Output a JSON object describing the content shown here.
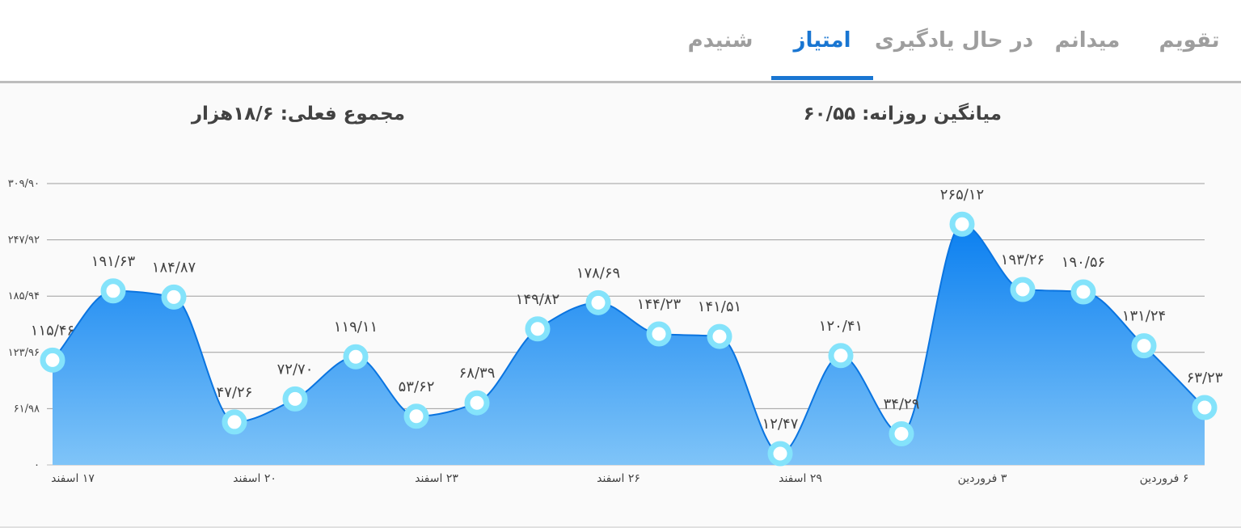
{
  "tabs": [
    {
      "label": "تقویم",
      "active": false
    },
    {
      "label": "میدانم",
      "active": false
    },
    {
      "label": "در حال یادگیری",
      "active": false
    },
    {
      "label": "امتیاز",
      "active": true
    },
    {
      "label": "شنیدم",
      "active": false
    }
  ],
  "stats": {
    "daily_average": "میانگین روزانه: ۶۰/۵۵",
    "current_total": "مجموع فعلی: ۱۸/۶هزار"
  },
  "colors": {
    "accent": "#1976d2",
    "area_top": "#0a7ff0",
    "area_bottom": "#7fc4f8",
    "marker": "#84e3fb"
  },
  "chart_data": {
    "type": "area",
    "y_ticks": [
      "۰",
      "۶۱/۹۸",
      "۱۲۳/۹۶",
      "۱۸۵/۹۴",
      "۲۴۷/۹۲",
      "۳۰۹/۹۰"
    ],
    "ylim": [
      0,
      309.9
    ],
    "x_tick_labels": [
      {
        "index": 0,
        "label": "۱۷ اسفند"
      },
      {
        "index": 3,
        "label": "۲۰ اسفند"
      },
      {
        "index": 6,
        "label": "۲۳ اسفند"
      },
      {
        "index": 9,
        "label": "۲۶ اسفند"
      },
      {
        "index": 12,
        "label": "۲۹ اسفند"
      },
      {
        "index": 15,
        "label": "۳ فروردین"
      },
      {
        "index": 18,
        "label": "۶ فروردین"
      }
    ],
    "values": [
      115.46,
      191.63,
      184.87,
      47.26,
      72.7,
      119.11,
      53.62,
      68.39,
      149.82,
      178.69,
      144.23,
      141.51,
      12.47,
      120.41,
      34.29,
      265.12,
      193.26,
      190.56,
      131.24,
      63.23
    ],
    "labels": [
      "۱۱۵/۴۶",
      "۱۹۱/۶۳",
      "۱۸۴/۸۷",
      "۴۷/۲۶",
      "۷۲/۷۰",
      "۱۱۹/۱۱",
      "۵۳/۶۲",
      "۶۸/۳۹",
      "۱۴۹/۸۲",
      "۱۷۸/۶۹",
      "۱۴۴/۲۳",
      "۱۴۱/۵۱",
      "۱۲/۴۷",
      "۱۲۰/۴۱",
      "۳۴/۲۹",
      "۲۶۵/۱۲",
      "۱۹۳/۲۶",
      "۱۹۰/۵۶",
      "۱۳۱/۲۴",
      "۶۳/۲۳"
    ],
    "grid": true
  }
}
